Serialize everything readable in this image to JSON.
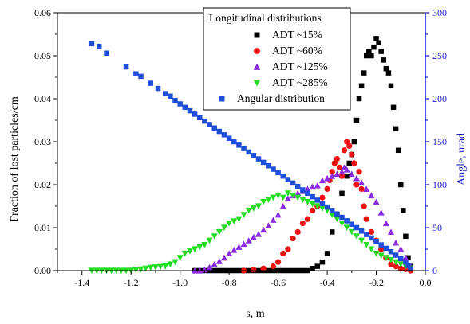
{
  "chart_data": {
    "type": "scatter",
    "xlabel": "s, m",
    "ylabel": "Fraction of lost particles/cm",
    "y2label": "Angle, urad",
    "xlim": [
      -1.5,
      0.0
    ],
    "ylim": [
      0.0,
      0.06
    ],
    "y2lim": [
      0,
      300
    ],
    "x_ticks": [
      "-1.4",
      "-1.2",
      "-1.0",
      "-0.8",
      "-0.6",
      "-0.4",
      "-0.2",
      "0.0"
    ],
    "y_ticks": [
      "0.00",
      "0.01",
      "0.02",
      "0.03",
      "0.04",
      "0.05",
      "0.06"
    ],
    "y2_ticks": [
      "0",
      "50",
      "100",
      "150",
      "200",
      "250",
      "300"
    ],
    "legend_title": "Longitudinal distributions",
    "legend_position": "top-right",
    "colors": {
      "axis_left": "#000000",
      "axis_right": "#1f1fd0",
      "black": "#000000",
      "red": "#ee1111",
      "purple": "#8a2be2",
      "green": "#22dd22",
      "blue": "#1f4fd8"
    },
    "series": [
      {
        "name": "ADT ~15%",
        "marker": "square",
        "color": "#000000",
        "axis": "left",
        "points": [
          [
            -0.94,
            0.0
          ],
          [
            -0.92,
            0.0
          ],
          [
            -0.9,
            0.0
          ],
          [
            -0.88,
            0.0
          ],
          [
            -0.86,
            0.0
          ],
          [
            -0.84,
            0.0
          ],
          [
            -0.82,
            0.0
          ],
          [
            -0.8,
            0.0
          ],
          [
            -0.78,
            0.0
          ],
          [
            -0.76,
            0.0
          ],
          [
            -0.74,
            0.0
          ],
          [
            -0.72,
            0.0
          ],
          [
            -0.7,
            0.0
          ],
          [
            -0.68,
            0.0
          ],
          [
            -0.66,
            0.0
          ],
          [
            -0.64,
            0.0
          ],
          [
            -0.62,
            0.0
          ],
          [
            -0.6,
            0.0
          ],
          [
            -0.58,
            0.0
          ],
          [
            -0.56,
            0.0
          ],
          [
            -0.54,
            0.0
          ],
          [
            -0.52,
            0.0
          ],
          [
            -0.5,
            0.0
          ],
          [
            -0.48,
            0.0
          ],
          [
            -0.46,
            0.0005
          ],
          [
            -0.44,
            0.001
          ],
          [
            -0.42,
            0.002
          ],
          [
            -0.4,
            0.004
          ],
          [
            -0.38,
            0.009
          ],
          [
            -0.36,
            0.013
          ],
          [
            -0.34,
            0.018
          ],
          [
            -0.32,
            0.022
          ],
          [
            -0.31,
            0.025
          ],
          [
            -0.3,
            0.027
          ],
          [
            -0.29,
            0.03
          ],
          [
            -0.28,
            0.035
          ],
          [
            -0.27,
            0.04
          ],
          [
            -0.26,
            0.043
          ],
          [
            -0.25,
            0.046
          ],
          [
            -0.24,
            0.05
          ],
          [
            -0.23,
            0.051
          ],
          [
            -0.22,
            0.05
          ],
          [
            -0.21,
            0.052
          ],
          [
            -0.2,
            0.054
          ],
          [
            -0.19,
            0.053
          ],
          [
            -0.18,
            0.051
          ],
          [
            -0.17,
            0.049
          ],
          [
            -0.16,
            0.047
          ],
          [
            -0.15,
            0.046
          ],
          [
            -0.14,
            0.043
          ],
          [
            -0.13,
            0.038
          ],
          [
            -0.12,
            0.033
          ],
          [
            -0.11,
            0.028
          ],
          [
            -0.1,
            0.02
          ],
          [
            -0.09,
            0.014
          ],
          [
            -0.08,
            0.008
          ],
          [
            -0.07,
            0.003
          ],
          [
            -0.06,
            0.001
          ]
        ]
      },
      {
        "name": "ADT ~60%",
        "marker": "circle",
        "color": "#ee1111",
        "axis": "left",
        "points": [
          [
            -0.74,
            0.0
          ],
          [
            -0.7,
            0.0002
          ],
          [
            -0.66,
            0.0005
          ],
          [
            -0.62,
            0.001
          ],
          [
            -0.6,
            0.002
          ],
          [
            -0.58,
            0.004
          ],
          [
            -0.56,
            0.005
          ],
          [
            -0.54,
            0.0075
          ],
          [
            -0.52,
            0.009
          ],
          [
            -0.5,
            0.011
          ],
          [
            -0.48,
            0.012
          ],
          [
            -0.46,
            0.014
          ],
          [
            -0.44,
            0.015
          ],
          [
            -0.42,
            0.017
          ],
          [
            -0.4,
            0.019
          ],
          [
            -0.39,
            0.021
          ],
          [
            -0.38,
            0.023
          ],
          [
            -0.37,
            0.025
          ],
          [
            -0.36,
            0.026
          ],
          [
            -0.35,
            0.024
          ],
          [
            -0.34,
            0.022
          ],
          [
            -0.33,
            0.028
          ],
          [
            -0.32,
            0.03
          ],
          [
            -0.31,
            0.029
          ],
          [
            -0.3,
            0.027
          ],
          [
            -0.29,
            0.025
          ],
          [
            -0.28,
            0.02
          ],
          [
            -0.27,
            0.023
          ],
          [
            -0.26,
            0.019
          ],
          [
            -0.25,
            0.015
          ],
          [
            -0.24,
            0.012
          ],
          [
            -0.22,
            0.009
          ],
          [
            -0.2,
            0.007
          ],
          [
            -0.18,
            0.005
          ],
          [
            -0.16,
            0.003
          ],
          [
            -0.14,
            0.0015
          ],
          [
            -0.12,
            0.001
          ],
          [
            -0.1,
            0.0005
          ],
          [
            -0.08,
            0.0003
          ],
          [
            -0.06,
            0.0
          ]
        ]
      },
      {
        "name": "ADT ~125%",
        "marker": "triangle-up",
        "color": "#8a2be2",
        "axis": "left",
        "points": [
          [
            -0.94,
            0.0
          ],
          [
            -0.92,
            0.0
          ],
          [
            -0.9,
            0.0002
          ],
          [
            -0.88,
            0.0008
          ],
          [
            -0.86,
            0.0015
          ],
          [
            -0.84,
            0.0022
          ],
          [
            -0.82,
            0.003
          ],
          [
            -0.8,
            0.004
          ],
          [
            -0.78,
            0.0048
          ],
          [
            -0.76,
            0.0055
          ],
          [
            -0.74,
            0.0062
          ],
          [
            -0.72,
            0.007
          ],
          [
            -0.7,
            0.0078
          ],
          [
            -0.68,
            0.0085
          ],
          [
            -0.66,
            0.0095
          ],
          [
            -0.64,
            0.0105
          ],
          [
            -0.62,
            0.0118
          ],
          [
            -0.6,
            0.013
          ],
          [
            -0.58,
            0.015
          ],
          [
            -0.56,
            0.0168
          ],
          [
            -0.54,
            0.0175
          ],
          [
            -0.52,
            0.018
          ],
          [
            -0.5,
            0.0185
          ],
          [
            -0.48,
            0.019
          ],
          [
            -0.46,
            0.0195
          ],
          [
            -0.44,
            0.0198
          ],
          [
            -0.42,
            0.021
          ],
          [
            -0.4,
            0.0215
          ],
          [
            -0.38,
            0.022
          ],
          [
            -0.36,
            0.0225
          ],
          [
            -0.34,
            0.023
          ],
          [
            -0.33,
            0.024
          ],
          [
            -0.32,
            0.0235
          ],
          [
            -0.3,
            0.0225
          ],
          [
            -0.28,
            0.0215
          ],
          [
            -0.26,
            0.0205
          ],
          [
            -0.24,
            0.019
          ],
          [
            -0.22,
            0.0175
          ],
          [
            -0.2,
            0.016
          ],
          [
            -0.18,
            0.0135
          ],
          [
            -0.16,
            0.011
          ],
          [
            -0.14,
            0.009
          ],
          [
            -0.12,
            0.0065
          ],
          [
            -0.1,
            0.005
          ],
          [
            -0.08,
            0.003
          ],
          [
            -0.06,
            0.001
          ]
        ]
      },
      {
        "name": "ADT ~285%",
        "marker": "triangle-down",
        "color": "#22dd22",
        "axis": "left",
        "points": [
          [
            -1.36,
            0.0
          ],
          [
            -1.34,
            0.0
          ],
          [
            -1.32,
            0.0
          ],
          [
            -1.3,
            0.0
          ],
          [
            -1.28,
            0.0
          ],
          [
            -1.26,
            0.0
          ],
          [
            -1.24,
            0.0
          ],
          [
            -1.22,
            0.0
          ],
          [
            -1.2,
            0.0
          ],
          [
            -1.18,
            0.0002
          ],
          [
            -1.16,
            0.0003
          ],
          [
            -1.14,
            0.0005
          ],
          [
            -1.12,
            0.0007
          ],
          [
            -1.1,
            0.0008
          ],
          [
            -1.08,
            0.0009
          ],
          [
            -1.06,
            0.001
          ],
          [
            -1.04,
            0.0015
          ],
          [
            -1.02,
            0.002
          ],
          [
            -1.0,
            0.003
          ],
          [
            -0.98,
            0.004
          ],
          [
            -0.96,
            0.0045
          ],
          [
            -0.94,
            0.005
          ],
          [
            -0.92,
            0.0055
          ],
          [
            -0.9,
            0.006
          ],
          [
            -0.88,
            0.007
          ],
          [
            -0.86,
            0.008
          ],
          [
            -0.84,
            0.009
          ],
          [
            -0.82,
            0.01
          ],
          [
            -0.8,
            0.011
          ],
          [
            -0.78,
            0.0115
          ],
          [
            -0.76,
            0.012
          ],
          [
            -0.74,
            0.013
          ],
          [
            -0.72,
            0.014
          ],
          [
            -0.7,
            0.0145
          ],
          [
            -0.68,
            0.015
          ],
          [
            -0.66,
            0.016
          ],
          [
            -0.64,
            0.0165
          ],
          [
            -0.62,
            0.017
          ],
          [
            -0.6,
            0.0175
          ],
          [
            -0.58,
            0.017
          ],
          [
            -0.56,
            0.018
          ],
          [
            -0.54,
            0.0175
          ],
          [
            -0.52,
            0.017
          ],
          [
            -0.5,
            0.0165
          ],
          [
            -0.48,
            0.016
          ],
          [
            -0.46,
            0.0155
          ],
          [
            -0.44,
            0.015
          ],
          [
            -0.42,
            0.0145
          ],
          [
            -0.4,
            0.014
          ],
          [
            -0.38,
            0.013
          ],
          [
            -0.36,
            0.012
          ],
          [
            -0.34,
            0.011
          ],
          [
            -0.32,
            0.01
          ],
          [
            -0.3,
            0.009
          ],
          [
            -0.28,
            0.008
          ],
          [
            -0.26,
            0.007
          ],
          [
            -0.24,
            0.006
          ],
          [
            -0.22,
            0.005
          ],
          [
            -0.2,
            0.004
          ],
          [
            -0.18,
            0.0035
          ],
          [
            -0.16,
            0.003
          ],
          [
            -0.14,
            0.0025
          ],
          [
            -0.12,
            0.002
          ],
          [
            -0.1,
            0.0015
          ],
          [
            -0.08,
            0.001
          ],
          [
            -0.06,
            0.0005
          ]
        ]
      },
      {
        "name": "Angular distribution",
        "marker": "square",
        "color": "#1f4fd8",
        "axis": "right",
        "points": [
          [
            -1.36,
            264
          ],
          [
            -1.33,
            261
          ],
          [
            -1.3,
            253
          ],
          [
            -1.22,
            237
          ],
          [
            -1.18,
            229
          ],
          [
            -1.16,
            226
          ],
          [
            -1.12,
            218
          ],
          [
            -1.09,
            212
          ],
          [
            -1.06,
            206
          ],
          [
            -1.04,
            203
          ],
          [
            -1.02,
            198
          ],
          [
            -1.0,
            194
          ],
          [
            -0.98,
            190
          ],
          [
            -0.96,
            186
          ],
          [
            -0.94,
            182
          ],
          [
            -0.92,
            178
          ],
          [
            -0.9,
            174
          ],
          [
            -0.88,
            170
          ],
          [
            -0.86,
            166
          ],
          [
            -0.84,
            162
          ],
          [
            -0.82,
            158
          ],
          [
            -0.8,
            154
          ],
          [
            -0.78,
            150
          ],
          [
            -0.76,
            146
          ],
          [
            -0.74,
            142
          ],
          [
            -0.72,
            138
          ],
          [
            -0.7,
            134
          ],
          [
            -0.68,
            130
          ],
          [
            -0.66,
            126
          ],
          [
            -0.64,
            122
          ],
          [
            -0.62,
            118
          ],
          [
            -0.6,
            114
          ],
          [
            -0.58,
            110
          ],
          [
            -0.56,
            106
          ],
          [
            -0.54,
            102
          ],
          [
            -0.52,
            98
          ],
          [
            -0.5,
            94
          ],
          [
            -0.48,
            90
          ],
          [
            -0.46,
            86
          ],
          [
            -0.44,
            82
          ],
          [
            -0.42,
            78
          ],
          [
            -0.4,
            74
          ],
          [
            -0.38,
            70
          ],
          [
            -0.36,
            66
          ],
          [
            -0.34,
            62
          ],
          [
            -0.32,
            58
          ],
          [
            -0.3,
            54
          ],
          [
            -0.28,
            50
          ],
          [
            -0.26,
            46
          ],
          [
            -0.24,
            42
          ],
          [
            -0.22,
            38
          ],
          [
            -0.2,
            34
          ],
          [
            -0.18,
            30
          ],
          [
            -0.16,
            26
          ],
          [
            -0.14,
            22
          ],
          [
            -0.12,
            18
          ],
          [
            -0.1,
            14
          ],
          [
            -0.08,
            10
          ],
          [
            -0.07,
            6
          ],
          [
            -0.06,
            2
          ]
        ]
      }
    ]
  }
}
